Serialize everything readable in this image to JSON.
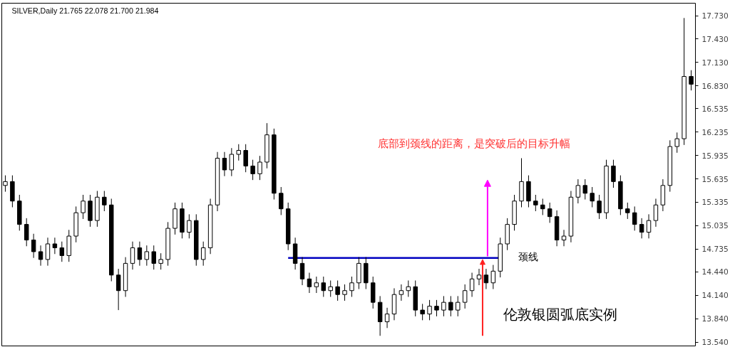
{
  "chart_data": {
    "type": "candlestick",
    "title": "SILVER,Daily  21.765 22.078 21.700 21.984",
    "categories": [
      null,
      null,
      null,
      null,
      null,
      null,
      null,
      null,
      null,
      null,
      null,
      null,
      null,
      null,
      null,
      null,
      null,
      null,
      null,
      null,
      null,
      null,
      null,
      null,
      null,
      null,
      null,
      null,
      null,
      null,
      null,
      null,
      null,
      null,
      null,
      null,
      null,
      null,
      null,
      null,
      null,
      null,
      null,
      null,
      null,
      null,
      null,
      null,
      null,
      null,
      null,
      null,
      null,
      null,
      null,
      null,
      null,
      null,
      null,
      null,
      null,
      null,
      null,
      null,
      null,
      null,
      null,
      null,
      null,
      null,
      null,
      null,
      null,
      null,
      null,
      null,
      null,
      null,
      null,
      null,
      null,
      null,
      null,
      null,
      null,
      null,
      null,
      null,
      null,
      null,
      null,
      null,
      null,
      null,
      null,
      null,
      null,
      null
    ],
    "ohlc": [
      [
        15.55,
        15.68,
        15.47,
        15.6
      ],
      [
        15.6,
        15.68,
        15.27,
        15.35
      ],
      [
        15.35,
        15.43,
        14.97,
        15.05
      ],
      [
        15.05,
        15.13,
        14.77,
        14.85
      ],
      [
        14.85,
        14.93,
        14.62,
        14.7
      ],
      [
        14.7,
        14.78,
        14.52,
        14.6
      ],
      [
        14.6,
        14.88,
        14.52,
        14.8
      ],
      [
        14.8,
        14.88,
        14.67,
        14.75
      ],
      [
        14.75,
        14.83,
        14.57,
        14.65
      ],
      [
        14.65,
        14.98,
        14.57,
        14.9
      ],
      [
        14.9,
        15.28,
        14.82,
        15.2
      ],
      [
        15.2,
        15.43,
        15.12,
        15.35
      ],
      [
        15.35,
        15.43,
        15.02,
        15.1
      ],
      [
        15.1,
        15.48,
        15.02,
        15.4
      ],
      [
        15.4,
        15.48,
        15.22,
        15.3
      ],
      [
        15.3,
        15.38,
        14.32,
        14.4
      ],
      [
        14.4,
        14.48,
        13.95,
        14.2
      ],
      [
        14.2,
        14.63,
        14.12,
        14.55
      ],
      [
        14.55,
        14.83,
        14.47,
        14.75
      ],
      [
        14.75,
        14.83,
        14.52,
        14.6
      ],
      [
        14.6,
        14.78,
        14.52,
        14.7
      ],
      [
        14.7,
        14.78,
        14.47,
        14.55
      ],
      [
        14.55,
        14.68,
        14.47,
        14.6
      ],
      [
        14.6,
        15.08,
        14.52,
        15.0
      ],
      [
        15.0,
        15.33,
        14.92,
        15.25
      ],
      [
        15.25,
        15.33,
        14.87,
        14.95
      ],
      [
        14.95,
        15.18,
        14.87,
        15.1
      ],
      [
        15.1,
        15.18,
        14.52,
        14.6
      ],
      [
        14.6,
        14.83,
        14.52,
        14.75
      ],
      [
        14.75,
        15.38,
        14.67,
        15.3
      ],
      [
        15.3,
        15.98,
        15.22,
        15.9
      ],
      [
        15.9,
        15.98,
        15.67,
        15.75
      ],
      [
        15.75,
        16.03,
        15.67,
        15.95
      ],
      [
        15.95,
        16.08,
        15.87,
        16.0
      ],
      [
        16.0,
        16.08,
        15.72,
        15.8
      ],
      [
        15.8,
        15.88,
        15.62,
        15.7
      ],
      [
        15.7,
        15.93,
        15.62,
        15.85
      ],
      [
        15.85,
        16.35,
        15.77,
        16.2
      ],
      [
        16.2,
        16.28,
        15.37,
        15.45
      ],
      [
        15.45,
        15.53,
        15.17,
        15.25
      ],
      [
        15.25,
        15.33,
        14.72,
        14.8
      ],
      [
        14.8,
        14.88,
        14.47,
        14.55
      ],
      [
        14.55,
        14.63,
        14.27,
        14.35
      ],
      [
        14.35,
        14.43,
        14.17,
        14.25
      ],
      [
        14.25,
        14.38,
        14.17,
        14.3
      ],
      [
        14.3,
        14.38,
        14.12,
        14.2
      ],
      [
        14.2,
        14.33,
        14.12,
        14.25
      ],
      [
        14.25,
        14.33,
        14.07,
        14.15
      ],
      [
        14.15,
        14.28,
        14.07,
        14.2
      ],
      [
        14.2,
        14.38,
        14.12,
        14.3
      ],
      [
        14.3,
        14.63,
        14.22,
        14.55
      ],
      [
        14.55,
        14.63,
        14.22,
        14.3
      ],
      [
        14.3,
        14.38,
        13.97,
        14.05
      ],
      [
        14.05,
        14.13,
        13.62,
        13.8
      ],
      [
        13.8,
        13.98,
        13.72,
        13.9
      ],
      [
        13.9,
        14.23,
        13.82,
        14.15
      ],
      [
        14.15,
        14.28,
        14.07,
        14.2
      ],
      [
        14.2,
        14.33,
        14.12,
        14.25
      ],
      [
        14.25,
        14.33,
        13.87,
        13.95
      ],
      [
        13.95,
        14.03,
        13.82,
        13.9
      ],
      [
        13.9,
        14.08,
        13.82,
        14.0
      ],
      [
        14.0,
        14.08,
        13.87,
        13.95
      ],
      [
        13.95,
        14.13,
        13.87,
        14.05
      ],
      [
        14.05,
        14.13,
        13.87,
        13.95
      ],
      [
        13.95,
        14.13,
        13.87,
        14.05
      ],
      [
        14.05,
        14.28,
        13.97,
        14.2
      ],
      [
        14.2,
        14.43,
        14.12,
        14.35
      ],
      [
        14.35,
        14.48,
        14.27,
        14.4
      ],
      [
        14.4,
        14.48,
        14.22,
        14.3
      ],
      [
        14.3,
        14.53,
        14.22,
        14.45
      ],
      [
        14.45,
        14.88,
        14.37,
        14.8
      ],
      [
        14.8,
        15.13,
        14.72,
        15.05
      ],
      [
        15.05,
        15.43,
        14.97,
        15.35
      ],
      [
        15.35,
        15.9,
        15.27,
        15.6
      ],
      [
        15.6,
        15.68,
        15.27,
        15.35
      ],
      [
        15.35,
        15.43,
        15.22,
        15.3
      ],
      [
        15.3,
        15.38,
        15.17,
        15.25
      ],
      [
        15.25,
        15.33,
        15.07,
        15.15
      ],
      [
        15.15,
        15.23,
        14.77,
        14.85
      ],
      [
        14.85,
        14.98,
        14.77,
        14.9
      ],
      [
        14.9,
        15.48,
        14.82,
        15.4
      ],
      [
        15.4,
        15.63,
        15.32,
        15.55
      ],
      [
        15.55,
        15.63,
        15.37,
        15.45
      ],
      [
        15.45,
        15.53,
        15.27,
        15.35
      ],
      [
        15.35,
        15.43,
        15.12,
        15.2
      ],
      [
        15.2,
        15.88,
        15.12,
        15.8
      ],
      [
        15.8,
        15.88,
        15.52,
        15.6
      ],
      [
        15.6,
        15.68,
        15.17,
        15.25
      ],
      [
        15.25,
        15.33,
        15.12,
        15.2
      ],
      [
        15.2,
        15.28,
        14.97,
        15.05
      ],
      [
        15.05,
        15.13,
        14.87,
        14.95
      ],
      [
        14.95,
        15.18,
        14.87,
        15.1
      ],
      [
        15.1,
        15.38,
        15.02,
        15.3
      ],
      [
        15.3,
        15.63,
        15.22,
        15.55
      ],
      [
        15.55,
        16.13,
        15.47,
        16.05
      ],
      [
        16.05,
        16.23,
        15.97,
        16.15
      ],
      [
        16.15,
        17.7,
        16.07,
        16.95
      ],
      [
        16.95,
        17.03,
        16.77,
        16.85
      ]
    ],
    "color": "#000000",
    "series": [
      {
        "type": "line",
        "values": [
          null,
          null,
          null,
          null,
          null,
          null,
          null,
          null,
          null,
          null,
          null,
          null,
          null,
          null,
          null,
          null,
          null,
          null,
          null,
          null,
          null,
          null,
          null,
          null,
          null,
          null,
          null,
          null,
          null,
          null,
          null,
          null,
          null,
          null,
          null,
          null,
          null,
          null,
          null,
          null,
          14.62,
          14.62,
          14.62,
          14.62,
          14.62,
          14.62,
          14.62,
          14.62,
          14.62,
          14.62,
          14.62,
          14.62,
          14.62,
          14.62,
          14.62,
          14.62,
          14.62,
          14.62,
          14.62,
          14.62,
          14.62,
          14.62,
          14.62,
          14.62,
          14.62,
          14.62,
          14.62,
          14.62,
          14.62,
          14.62,
          14.62,
          null,
          null,
          null,
          null,
          null,
          null,
          null,
          null,
          null,
          null,
          null,
          null,
          null,
          null,
          null,
          null,
          null,
          null,
          null,
          null,
          null,
          null,
          null,
          null,
          null,
          null,
          null
        ],
        "color": "#0000c0"
      }
    ],
    "ylim": [
      13.49,
      17.89
    ],
    "yticks": [
      {
        "value": 17.73,
        "label": "17.730"
      },
      {
        "value": 17.43,
        "label": "17.430"
      },
      {
        "value": 17.13,
        "label": "17.130"
      },
      {
        "value": 16.83,
        "label": "16.830"
      },
      {
        "value": 16.535,
        "label": "16.535"
      },
      {
        "value": 16.235,
        "label": "16.235"
      },
      {
        "value": 15.935,
        "label": "15.935"
      },
      {
        "value": 15.635,
        "label": "15.635"
      },
      {
        "value": 15.335,
        "label": "15.335"
      },
      {
        "value": 15.035,
        "label": "15.035"
      },
      {
        "value": 14.735,
        "label": "14.735"
      },
      {
        "value": 14.44,
        "label": "14.440"
      },
      {
        "value": 14.14,
        "label": "14.140"
      },
      {
        "value": 13.84,
        "label": "13.840"
      },
      {
        "value": 13.54,
        "label": "13.540"
      }
    ],
    "tick_labels": "y",
    "annotations": [
      "颈线",
      "底部到颈线的距离，是突破后的目标升幅",
      "伦敦银圆弧底实例"
    ]
  }
}
